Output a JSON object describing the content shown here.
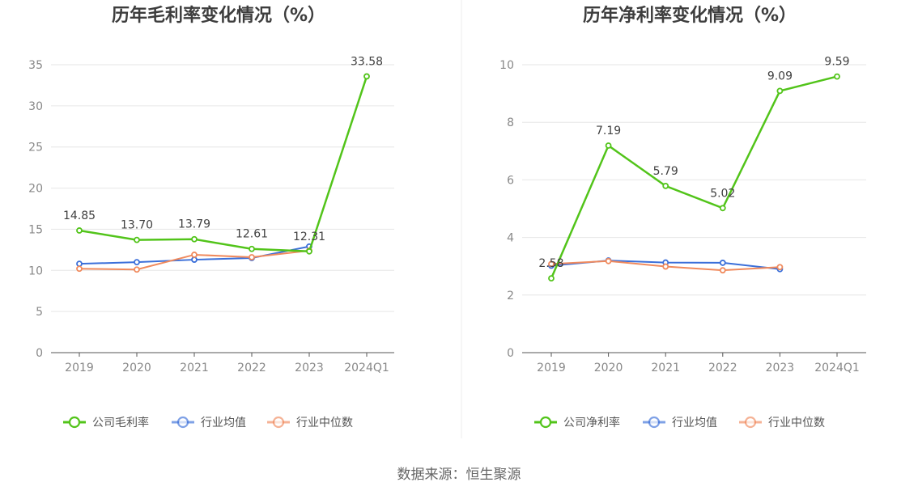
{
  "source_label": "数据来源：恒生聚源",
  "chart_data": [
    {
      "type": "line",
      "title": "历年毛利率变化情况（%）",
      "categories": [
        "2019",
        "2020",
        "2021",
        "2022",
        "2023",
        "2024Q1"
      ],
      "ylim": [
        0,
        35
      ],
      "yticks": [
        0,
        5,
        10,
        15,
        20,
        25,
        30,
        35
      ],
      "grid": true,
      "legend_position": "bottom",
      "series": [
        {
          "name": "公司毛利率",
          "color": "#52c41a",
          "values": [
            14.85,
            13.7,
            13.79,
            12.61,
            12.31,
            33.58
          ],
          "labels": [
            "14.85",
            "13.70",
            "13.79",
            "12.61",
            "12.31",
            "33.58"
          ]
        },
        {
          "name": "行业均值",
          "color": "#3b6fd9",
          "values": [
            10.8,
            11.0,
            11.3,
            11.5,
            12.9,
            null
          ]
        },
        {
          "name": "行业中位数",
          "color": "#f08a5d",
          "values": [
            10.2,
            10.1,
            11.9,
            11.6,
            12.4,
            null
          ]
        }
      ]
    },
    {
      "type": "line",
      "title": "历年净利率变化情况（%）",
      "categories": [
        "2019",
        "2020",
        "2021",
        "2022",
        "2023",
        "2024Q1"
      ],
      "ylim": [
        0,
        10
      ],
      "yticks": [
        0,
        2,
        4,
        6,
        8,
        10
      ],
      "grid": true,
      "legend_position": "bottom",
      "series": [
        {
          "name": "公司净利率",
          "color": "#52c41a",
          "values": [
            2.58,
            7.19,
            5.79,
            5.02,
            9.09,
            9.59
          ],
          "labels": [
            "2.58",
            "7.19",
            "5.79",
            "5.02",
            "9.09",
            "9.59"
          ]
        },
        {
          "name": "行业均值",
          "color": "#3b6fd9",
          "values": [
            3.02,
            3.2,
            3.13,
            3.12,
            2.9,
            null
          ]
        },
        {
          "name": "行业中位数",
          "color": "#f08a5d",
          "values": [
            3.08,
            3.18,
            2.99,
            2.86,
            2.97,
            null
          ]
        }
      ]
    }
  ]
}
